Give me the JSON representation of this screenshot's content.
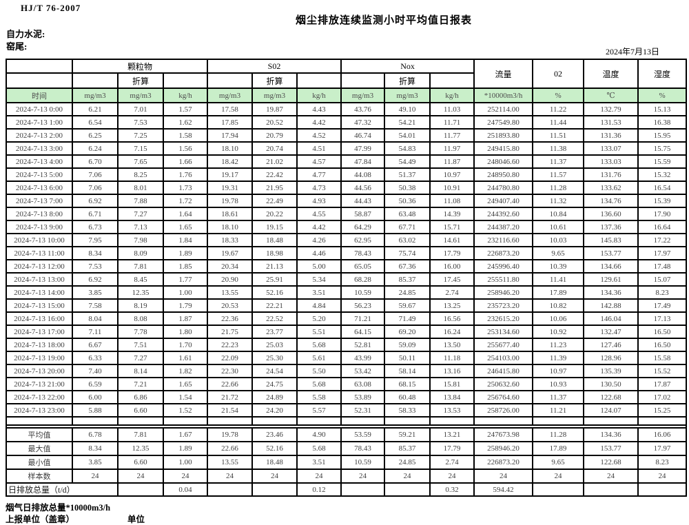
{
  "meta": {
    "standard": "HJ/T  76-2007",
    "title": "烟尘排放连续监测小时平均值日报表",
    "company": "自力水泥:",
    "location": "窑尾:",
    "date": "2024年7月13日"
  },
  "colors": {
    "header_green": "#c9efc9",
    "border": "#000000",
    "data_text": "#3d3d3d"
  },
  "table": {
    "group_headers": [
      "颗粒物",
      "S02",
      "Nox"
    ],
    "converted_label": "折算",
    "merged_headers": [
      "流量",
      "02",
      "温度",
      "湿度"
    ],
    "time_header": "时间",
    "units": [
      "mg/m3",
      "mg/m3",
      "kg/h",
      "mg/m3",
      "mg/m3",
      "kg/h",
      "mg/m3",
      "mg/m3",
      "kg/h",
      "*10000m3/h",
      "%",
      "℃",
      "%"
    ],
    "rows": [
      [
        "2024-7-13 0:00",
        "6.21",
        "7.01",
        "1.57",
        "17.58",
        "19.87",
        "4.43",
        "43.76",
        "49.10",
        "11.03",
        "252114.00",
        "11.22",
        "132.79",
        "15.13"
      ],
      [
        "2024-7-13 1:00",
        "6.54",
        "7.53",
        "1.62",
        "17.85",
        "20.52",
        "4.42",
        "47.32",
        "54.21",
        "11.71",
        "247549.80",
        "11.44",
        "131.53",
        "16.38"
      ],
      [
        "2024-7-13 2:00",
        "6.25",
        "7.25",
        "1.58",
        "17.94",
        "20.79",
        "4.52",
        "46.74",
        "54.01",
        "11.77",
        "251893.80",
        "11.51",
        "131.36",
        "15.95"
      ],
      [
        "2024-7-13 3:00",
        "6.24",
        "7.15",
        "1.56",
        "18.10",
        "20.74",
        "4.51",
        "47.99",
        "54.83",
        "11.97",
        "249415.80",
        "11.38",
        "133.07",
        "15.75"
      ],
      [
        "2024-7-13 4:00",
        "6.70",
        "7.65",
        "1.66",
        "18.42",
        "21.02",
        "4.57",
        "47.84",
        "54.49",
        "11.87",
        "248046.60",
        "11.37",
        "133.03",
        "15.59"
      ],
      [
        "2024-7-13 5:00",
        "7.06",
        "8.25",
        "1.76",
        "19.17",
        "22.42",
        "4.77",
        "44.08",
        "51.37",
        "10.97",
        "248950.80",
        "11.57",
        "131.76",
        "15.32"
      ],
      [
        "2024-7-13 6:00",
        "7.06",
        "8.01",
        "1.73",
        "19.31",
        "21.95",
        "4.73",
        "44.56",
        "50.38",
        "10.91",
        "244780.80",
        "11.28",
        "133.62",
        "16.54"
      ],
      [
        "2024-7-13 7:00",
        "6.92",
        "7.88",
        "1.72",
        "19.78",
        "22.49",
        "4.93",
        "44.43",
        "50.36",
        "11.08",
        "249407.40",
        "11.32",
        "134.76",
        "15.39"
      ],
      [
        "2024-7-13 8:00",
        "6.71",
        "7.27",
        "1.64",
        "18.61",
        "20.22",
        "4.55",
        "58.87",
        "63.48",
        "14.39",
        "244392.60",
        "10.84",
        "136.60",
        "17.90"
      ],
      [
        "2024-7-13 9:00",
        "6.73",
        "7.13",
        "1.65",
        "18.10",
        "19.15",
        "4.42",
        "64.29",
        "67.71",
        "15.71",
        "244387.20",
        "10.61",
        "137.36",
        "16.64"
      ],
      [
        "2024-7-13 10:00",
        "7.95",
        "7.98",
        "1.84",
        "18.33",
        "18.48",
        "4.26",
        "62.95",
        "63.02",
        "14.61",
        "232116.60",
        "10.03",
        "145.83",
        "17.22"
      ],
      [
        "2024-7-13 11:00",
        "8.34",
        "8.09",
        "1.89",
        "19.67",
        "18.98",
        "4.46",
        "78.43",
        "75.74",
        "17.79",
        "226873.20",
        "9.65",
        "153.77",
        "17.97"
      ],
      [
        "2024-7-13 12:00",
        "7.53",
        "7.81",
        "1.85",
        "20.34",
        "21.13",
        "5.00",
        "65.05",
        "67.36",
        "16.00",
        "245996.40",
        "10.39",
        "134.66",
        "17.48"
      ],
      [
        "2024-7-13 13:00",
        "6.92",
        "8.45",
        "1.77",
        "20.90",
        "25.91",
        "5.34",
        "68.28",
        "85.37",
        "17.45",
        "255511.80",
        "11.41",
        "129.61",
        "15.07"
      ],
      [
        "2024-7-13 14:00",
        "3.85",
        "12.35",
        "1.00",
        "13.55",
        "52.16",
        "3.51",
        "10.59",
        "24.85",
        "2.74",
        "258946.20",
        "17.89",
        "134.36",
        "8.23"
      ],
      [
        "2024-7-13 15:00",
        "7.58",
        "8.19",
        "1.79",
        "20.53",
        "22.21",
        "4.84",
        "56.23",
        "59.67",
        "13.25",
        "235723.20",
        "10.82",
        "142.88",
        "17.49"
      ],
      [
        "2024-7-13 16:00",
        "8.04",
        "8.08",
        "1.87",
        "22.36",
        "22.52",
        "5.20",
        "71.21",
        "71.49",
        "16.56",
        "232615.20",
        "10.06",
        "146.04",
        "17.13"
      ],
      [
        "2024-7-13 17:00",
        "7.11",
        "7.78",
        "1.80",
        "21.75",
        "23.77",
        "5.51",
        "64.15",
        "69.20",
        "16.24",
        "253134.60",
        "10.92",
        "132.47",
        "16.50"
      ],
      [
        "2024-7-13 18:00",
        "6.67",
        "7.51",
        "1.70",
        "22.23",
        "25.03",
        "5.68",
        "52.81",
        "59.09",
        "13.50",
        "255677.40",
        "11.23",
        "127.46",
        "16.50"
      ],
      [
        "2024-7-13 19:00",
        "6.33",
        "7.27",
        "1.61",
        "22.09",
        "25.30",
        "5.61",
        "43.99",
        "50.11",
        "11.18",
        "254103.00",
        "11.39",
        "128.96",
        "15.58"
      ],
      [
        "2024-7-13 20:00",
        "7.40",
        "8.14",
        "1.82",
        "22.30",
        "24.54",
        "5.50",
        "53.42",
        "58.14",
        "13.16",
        "246415.80",
        "10.97",
        "135.39",
        "15.52"
      ],
      [
        "2024-7-13 21:00",
        "6.59",
        "7.21",
        "1.65",
        "22.66",
        "24.75",
        "5.68",
        "63.08",
        "68.15",
        "15.81",
        "250632.60",
        "10.93",
        "130.50",
        "17.87"
      ],
      [
        "2024-7-13 22:00",
        "6.00",
        "6.86",
        "1.54",
        "21.72",
        "24.89",
        "5.58",
        "53.89",
        "60.48",
        "13.84",
        "256764.60",
        "11.37",
        "122.68",
        "17.02"
      ],
      [
        "2024-7-13 23:00",
        "5.88",
        "6.60",
        "1.52",
        "21.54",
        "24.20",
        "5.57",
        "52.31",
        "58.33",
        "13.53",
        "258726.00",
        "11.21",
        "124.07",
        "15.25"
      ]
    ],
    "summary_rows": [
      [
        "平均值",
        "6.78",
        "7.81",
        "1.67",
        "19.78",
        "23.46",
        "4.90",
        "53.59",
        "59.21",
        "13.21",
        "247673.98",
        "11.28",
        "134.36",
        "16.06"
      ],
      [
        "最大值",
        "8.34",
        "12.35",
        "1.89",
        "22.66",
        "52.16",
        "5.68",
        "78.43",
        "85.37",
        "17.79",
        "258946.20",
        "17.89",
        "153.77",
        "17.97"
      ],
      [
        "最小值",
        "3.85",
        "6.60",
        "1.00",
        "13.55",
        "18.48",
        "3.51",
        "10.59",
        "24.85",
        "2.74",
        "226873.20",
        "9.65",
        "122.68",
        "8.23"
      ],
      [
        "样本数",
        "24",
        "24",
        "24",
        "24",
        "24",
        "24",
        "24",
        "24",
        "24",
        "24",
        "24",
        "24",
        "24"
      ]
    ],
    "daily_total": {
      "label": "日排放总量（t/d）",
      "values": [
        "",
        "0.04",
        "",
        "",
        "0.12",
        "",
        "",
        "0.32",
        "594.42",
        "",
        "",
        ""
      ]
    }
  },
  "footer": {
    "line1": "烟气日排放总量*10000m3/h",
    "line2_left": "上报单位（盖章）",
    "line2_right": "单位"
  }
}
